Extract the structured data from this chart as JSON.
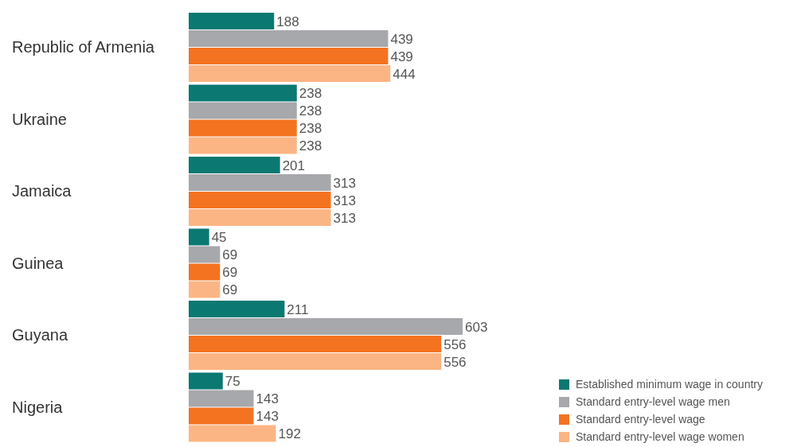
{
  "chart_data": {
    "type": "bar",
    "orientation": "horizontal",
    "categories": [
      "Republic of Armenia",
      "Ukraine",
      "Jamaica",
      "Guinea",
      "Guyana",
      "Nigeria"
    ],
    "series": [
      {
        "name": "Established minimum wage in country",
        "color": "#0b7872",
        "values": [
          188,
          238,
          201,
          45,
          211,
          75
        ]
      },
      {
        "name": "Standard entry-level wage men",
        "color": "#a7a8ab",
        "values": [
          439,
          238,
          313,
          69,
          603,
          143
        ]
      },
      {
        "name": "Standard entry-level wage",
        "color": "#f37321",
        "values": [
          439,
          238,
          313,
          69,
          556,
          143
        ]
      },
      {
        "name": "Standard entry-level wage women",
        "color": "#fbb584",
        "values": [
          444,
          238,
          313,
          69,
          556,
          192
        ]
      }
    ],
    "xlim": [
      0,
      603
    ],
    "data_labels": true,
    "legend": "bottom right"
  }
}
